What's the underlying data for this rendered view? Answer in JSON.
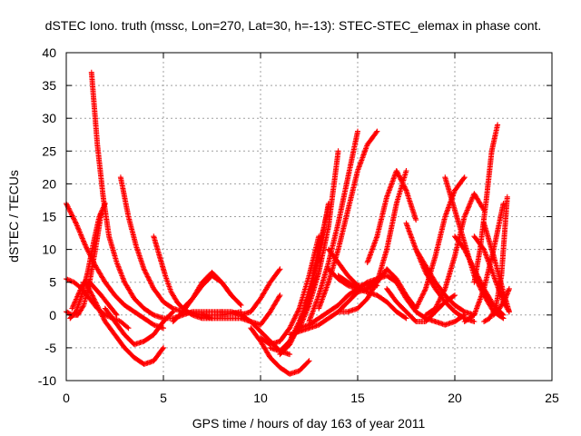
{
  "chart_data": {
    "type": "scatter",
    "title": "dSTEC Iono. truth (mssc, Lon=270, Lat=30, h=-13): STEC-STEC_elemax in phase cont.",
    "xlabel": "GPS time / hours of day 163 of year 2011",
    "ylabel": "dSTEC  / TECUs",
    "xlim": [
      0,
      25
    ],
    "ylim": [
      -10,
      40
    ],
    "xticks": [
      0,
      5,
      10,
      15,
      20,
      25
    ],
    "yticks": [
      -10,
      -5,
      0,
      5,
      10,
      15,
      20,
      25,
      30,
      35,
      40
    ],
    "grid": true,
    "marker": "plus",
    "color": "#ff0000",
    "series": [
      {
        "x": [
          0.0,
          0.5,
          1.0,
          1.5,
          2.0,
          2.5,
          3.0,
          3.5,
          4.0,
          4.5,
          5.0
        ],
        "y": [
          17.0,
          14.0,
          10.5,
          7.5,
          5.0,
          3.0,
          1.5,
          0.5,
          -0.5,
          -1.5,
          -2.0
        ]
      },
      {
        "x": [
          0.0,
          0.3,
          0.6,
          0.9,
          1.2,
          1.5,
          1.8
        ],
        "y": [
          0.5,
          0.0,
          0.0,
          1.5,
          5.0,
          10.0,
          15.5
        ]
      },
      {
        "x": [
          0.0,
          0.4,
          0.8,
          1.2,
          1.6,
          2.0,
          2.4,
          2.8,
          3.2
        ],
        "y": [
          5.5,
          5.0,
          4.0,
          2.5,
          1.0,
          0.0,
          -0.5,
          -1.0,
          -2.0
        ]
      },
      {
        "x": [
          0.2,
          0.5,
          0.8,
          1.1,
          1.4,
          1.7,
          2.0
        ],
        "y": [
          -0.5,
          0.5,
          3.0,
          6.5,
          11.0,
          15.0,
          17.0
        ]
      },
      {
        "x": [
          0.3,
          0.6,
          0.9,
          1.2,
          1.5,
          1.8,
          2.2,
          2.6
        ],
        "y": [
          1.0,
          3.0,
          5.0,
          5.0,
          4.0,
          3.0,
          1.5,
          0.0
        ]
      },
      {
        "x": [
          1.3,
          1.6,
          1.9,
          2.2,
          2.6,
          3.0,
          3.5,
          4.0,
          4.5,
          5.0,
          5.5,
          6.0,
          6.5,
          7.0,
          8.0
        ],
        "y": [
          37.0,
          26.0,
          18.0,
          12.0,
          8.0,
          5.0,
          2.5,
          1.0,
          0.0,
          -0.5,
          -0.5,
          0.0,
          0.5,
          0.5,
          0.5
        ]
      },
      {
        "x": [
          2.8,
          3.2,
          3.6,
          4.0,
          4.5,
          5.0,
          5.5,
          6.0,
          6.5,
          7.0,
          7.5,
          8.0,
          9.0
        ],
        "y": [
          21.0,
          15.0,
          10.5,
          7.0,
          4.0,
          2.0,
          1.0,
          0.5,
          0.3,
          0.0,
          0.0,
          0.0,
          0.5
        ]
      },
      {
        "x": [
          1.0,
          1.5,
          2.0,
          2.5,
          3.0,
          3.5,
          4.0,
          4.5,
          5.0
        ],
        "y": [
          5.0,
          2.0,
          -1.0,
          -3.0,
          -5.0,
          -6.5,
          -7.5,
          -7.0,
          -5.0
        ]
      },
      {
        "x": [
          4.5,
          4.8,
          5.1,
          5.4,
          5.7,
          6.0,
          6.5,
          7.0,
          7.5
        ],
        "y": [
          12.0,
          9.0,
          6.0,
          3.5,
          2.0,
          1.0,
          0.0,
          -0.5,
          -0.5
        ]
      },
      {
        "x": [
          2.0,
          2.5,
          3.0,
          3.5,
          4.0,
          4.5,
          5.0,
          5.5
        ],
        "y": [
          1.0,
          -1.0,
          -3.0,
          -4.5,
          -4.0,
          -3.0,
          -1.0,
          0.5
        ]
      },
      {
        "x": [
          5.5,
          6.0,
          6.5,
          7.0,
          7.5,
          8.0,
          8.5
        ],
        "y": [
          -1.0,
          0.5,
          2.5,
          5.0,
          6.5,
          5.0,
          3.0
        ]
      },
      {
        "x": [
          6.0,
          6.5,
          7.0,
          7.5,
          8.0,
          8.5,
          9.0
        ],
        "y": [
          1.0,
          2.5,
          4.5,
          6.0,
          5.0,
          3.0,
          1.5
        ]
      },
      {
        "x": [
          7.0,
          7.5,
          8.0,
          8.5,
          9.0,
          9.5,
          10.0,
          10.5,
          11.0
        ],
        "y": [
          0.0,
          -0.5,
          -0.5,
          -0.5,
          -0.5,
          -1.0,
          -1.5,
          0.5,
          3.0
        ]
      },
      {
        "x": [
          8.0,
          8.5,
          9.0,
          9.5,
          10.0,
          10.5,
          11.0,
          11.5
        ],
        "y": [
          0.5,
          0.5,
          0.0,
          -1.0,
          -2.5,
          -4.0,
          -5.5,
          -6.0
        ]
      },
      {
        "x": [
          9.5,
          10.0,
          10.5,
          11.0,
          11.5,
          12.0,
          12.5
        ],
        "y": [
          -2.0,
          -4.0,
          -6.5,
          -8.0,
          -9.0,
          -8.5,
          -7.0
        ]
      },
      {
        "x": [
          9.0,
          9.5,
          10.0,
          10.5,
          11.0
        ],
        "y": [
          0.0,
          0.5,
          2.5,
          5.0,
          7.0
        ]
      },
      {
        "x": [
          10.0,
          10.5,
          11.0,
          11.5,
          12.0,
          12.5,
          13.0
        ],
        "y": [
          -3.5,
          -4.5,
          -4.0,
          -2.0,
          1.0,
          6.0,
          12.0
        ]
      },
      {
        "x": [
          10.5,
          11.0,
          11.5,
          12.0,
          12.5,
          13.0,
          13.5
        ],
        "y": [
          -5.0,
          -5.5,
          -4.0,
          -1.0,
          3.0,
          9.0,
          17.0
        ]
      },
      {
        "x": [
          11.0,
          11.5,
          12.0,
          12.5,
          13.0,
          13.5
        ],
        "y": [
          -6.0,
          -4.5,
          -1.5,
          3.5,
          10.0,
          16.5
        ]
      },
      {
        "x": [
          11.5,
          12.0,
          12.5,
          13.0,
          13.5,
          14.0
        ],
        "y": [
          -4.0,
          -2.0,
          1.5,
          6.5,
          13.5,
          25.0
        ]
      },
      {
        "x": [
          11.5,
          12.0,
          12.5,
          13.0,
          13.5,
          14.0,
          14.5,
          15.0,
          15.5,
          16.0
        ],
        "y": [
          -3.0,
          -2.5,
          -2.0,
          -1.5,
          -0.5,
          0.5,
          2.0,
          3.5,
          4.0,
          4.5
        ]
      },
      {
        "x": [
          12.0,
          12.5,
          13.0,
          13.5,
          14.0,
          14.5,
          15.0,
          15.5,
          16.0
        ],
        "y": [
          -2.0,
          -1.5,
          -0.5,
          0.5,
          1.5,
          3.0,
          4.0,
          5.0,
          5.5
        ]
      },
      {
        "x": [
          12.5,
          13.0,
          13.5,
          14.0,
          14.5,
          15.0
        ],
        "y": [
          -1.0,
          3.0,
          8.0,
          14.0,
          21.0,
          28.0
        ]
      },
      {
        "x": [
          13.0,
          13.5,
          14.0,
          14.5,
          15.0,
          15.5,
          16.0
        ],
        "y": [
          1.0,
          5.0,
          10.0,
          16.0,
          22.0,
          26.0,
          28.0
        ]
      },
      {
        "x": [
          13.5,
          14.0,
          14.5,
          15.0,
          15.5,
          16.0,
          16.5,
          17.0
        ],
        "y": [
          10.0,
          8.0,
          6.0,
          4.5,
          4.5,
          5.5,
          6.0,
          5.0
        ]
      },
      {
        "x": [
          14.0,
          14.5,
          15.0,
          15.5,
          16.0,
          16.5,
          17.0,
          17.5,
          18.0
        ],
        "y": [
          6.0,
          5.0,
          4.0,
          4.0,
          5.0,
          7.0,
          5.5,
          3.0,
          1.0
        ]
      },
      {
        "x": [
          13.5,
          14.0,
          14.5,
          15.0,
          15.5,
          16.0,
          16.5,
          17.0,
          17.5
        ],
        "y": [
          7.0,
          5.5,
          4.5,
          4.0,
          3.5,
          3.0,
          2.0,
          0.5,
          -0.5
        ]
      },
      {
        "x": [
          14.0,
          14.5,
          15.0,
          15.5,
          16.0,
          16.5,
          17.0,
          17.5
        ],
        "y": [
          0.5,
          0.5,
          1.0,
          2.5,
          5.0,
          10.0,
          17.0,
          22.0
        ]
      },
      {
        "x": [
          15.5,
          16.0,
          16.5,
          17.0,
          17.5,
          18.0
        ],
        "y": [
          8.0,
          12.0,
          18.0,
          22.0,
          19.0,
          14.5
        ]
      },
      {
        "x": [
          16.5,
          17.0,
          17.5,
          18.0,
          18.5,
          19.0,
          19.5,
          20.0
        ],
        "y": [
          4.0,
          2.0,
          0.5,
          -1.0,
          -1.0,
          0.5,
          2.0,
          3.0
        ]
      },
      {
        "x": [
          17.0,
          17.5,
          18.0,
          18.5,
          19.0,
          19.5,
          20.0,
          20.5
        ],
        "y": [
          5.0,
          2.5,
          0.5,
          -0.5,
          -1.0,
          -1.5,
          -1.0,
          0.0
        ]
      },
      {
        "x": [
          17.5,
          18.0,
          18.5,
          19.0,
          19.5,
          20.0,
          20.5,
          21.0
        ],
        "y": [
          14.0,
          10.0,
          6.5,
          4.0,
          2.0,
          0.5,
          -0.5,
          -1.0
        ]
      },
      {
        "x": [
          18.0,
          18.5,
          19.0,
          19.5,
          20.0,
          20.5,
          21.0
        ],
        "y": [
          10.0,
          7.5,
          5.0,
          3.0,
          1.5,
          0.5,
          0.0
        ]
      },
      {
        "x": [
          18.0,
          18.5,
          19.0,
          19.5,
          20.0,
          20.5
        ],
        "y": [
          1.0,
          4.0,
          9.0,
          15.0,
          19.0,
          21.0
        ]
      },
      {
        "x": [
          18.5,
          19.0,
          19.5,
          20.0,
          20.5,
          21.0,
          21.5
        ],
        "y": [
          0.0,
          1.0,
          4.0,
          9.0,
          15.0,
          18.5,
          16.0
        ]
      },
      {
        "x": [
          19.5,
          20.0,
          20.5,
          21.0,
          21.5,
          22.0,
          22.5
        ],
        "y": [
          21.0,
          16.0,
          11.0,
          6.0,
          3.0,
          0.5,
          -0.5
        ]
      },
      {
        "x": [
          20.0,
          20.5,
          21.0,
          21.5,
          22.0,
          22.5
        ],
        "y": [
          12.0,
          10.0,
          7.0,
          4.0,
          1.5,
          0.0
        ]
      },
      {
        "x": [
          20.5,
          21.0,
          21.5,
          22.0,
          22.5
        ],
        "y": [
          -1.0,
          0.0,
          4.0,
          10.0,
          17.0
        ]
      },
      {
        "x": [
          21.0,
          21.3,
          21.6,
          21.9,
          22.2
        ],
        "y": [
          5.0,
          10.0,
          17.0,
          25.0,
          29.0
        ]
      },
      {
        "x": [
          21.0,
          21.5,
          22.0,
          22.5,
          22.8
        ],
        "y": [
          12.0,
          10.0,
          6.0,
          2.0,
          0.5
        ]
      },
      {
        "x": [
          21.5,
          22.0,
          22.5,
          22.8
        ],
        "y": [
          14.0,
          9.0,
          3.5,
          0.5
        ]
      },
      {
        "x": [
          21.5,
          21.8,
          22.1,
          22.4,
          22.7
        ],
        "y": [
          -1.0,
          -0.5,
          1.0,
          6.0,
          18.0
        ]
      },
      {
        "x": [
          22.0,
          22.3,
          22.6,
          22.8
        ],
        "y": [
          0.0,
          1.0,
          2.5,
          4.0
        ]
      }
    ]
  }
}
